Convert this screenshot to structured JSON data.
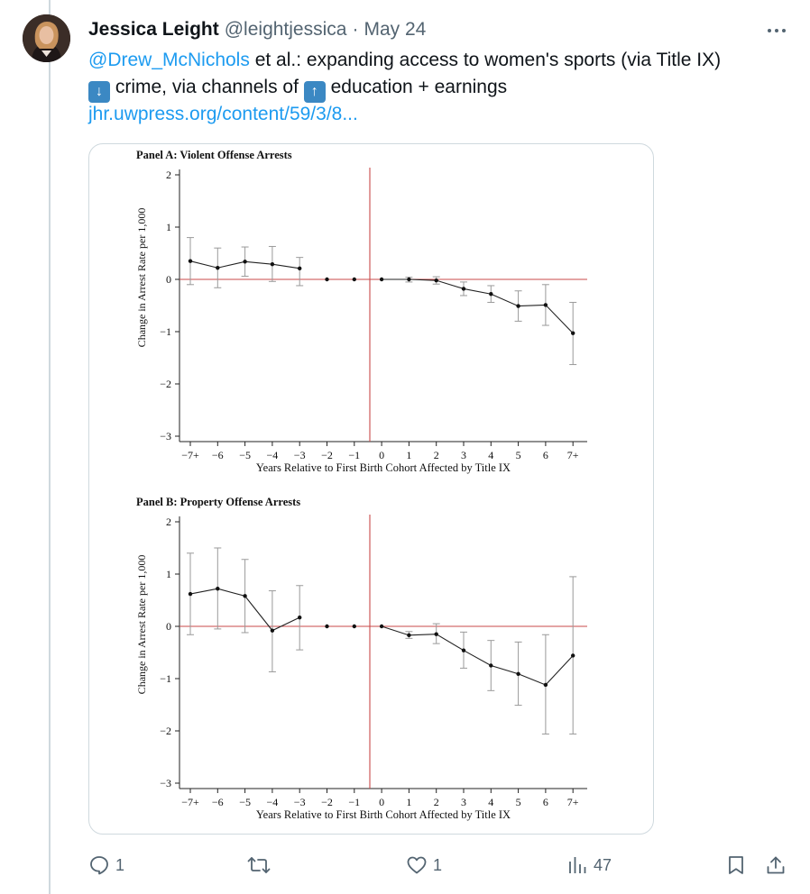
{
  "tweet": {
    "author_name": "Jessica Leight",
    "handle": "@leightjessica",
    "separator": "·",
    "date": "May 24",
    "mention": "@Drew_McNichols",
    "text_line1_rest": " et al.: expanding access to women's sports (via Title IX)",
    "emoji_down": "down-arrow-button",
    "text_line2_a": " crime, via channels of ",
    "emoji_up": "up-arrow-button",
    "text_line2_b": " education + earnings",
    "link": "jhr.uwpress.org/content/59/3/8..."
  },
  "actions": {
    "reply_count": "1",
    "retweet_count": "",
    "like_count": "1",
    "views_count": "47"
  },
  "chart_data": [
    {
      "type": "line",
      "title": "Panel A: Violent Offense Arrests",
      "xlabel": "Years Relative to First Birth Cohort Affected by Title IX",
      "ylabel": "Change in Arrest Rate per 1,000",
      "categories": [
        "−7+",
        "−6",
        "−5",
        "−4",
        "−3",
        "−2",
        "−1",
        "0",
        "1",
        "2",
        "3",
        "4",
        "5",
        "6",
        "7+"
      ],
      "yticks": [
        "2",
        "1",
        "0",
        "−1",
        "−2",
        "−3"
      ],
      "ylim": [
        -3,
        2
      ],
      "reference_line_y": 0,
      "reference_line_x_between": [
        "−1",
        "0"
      ],
      "values": [
        0.35,
        0.22,
        0.34,
        0.29,
        0.21,
        0.0,
        0.0,
        0.0,
        0.0,
        -0.02,
        -0.18,
        -0.28,
        -0.51,
        -0.49,
        -1.03
      ],
      "ci_low": [
        -0.1,
        -0.16,
        0.06,
        -0.04,
        -0.12,
        null,
        null,
        null,
        -0.05,
        -0.09,
        -0.31,
        -0.44,
        -0.8,
        -0.88,
        -1.63
      ],
      "ci_high": [
        0.8,
        0.6,
        0.62,
        0.63,
        0.42,
        null,
        null,
        null,
        0.04,
        0.05,
        -0.05,
        -0.12,
        -0.22,
        -0.1,
        -0.44
      ],
      "line_segments": [
        [
          0,
          4
        ],
        [
          7,
          14
        ]
      ]
    },
    {
      "type": "line",
      "title": "Panel B: Property Offense Arrests",
      "xlabel": "Years Relative to First Birth Cohort Affected by Title IX",
      "ylabel": "Change in Arrest Rate per 1,000",
      "categories": [
        "−7+",
        "−6",
        "−5",
        "−4",
        "−3",
        "−2",
        "−1",
        "0",
        "1",
        "2",
        "3",
        "4",
        "5",
        "6",
        "7+"
      ],
      "yticks": [
        "2",
        "1",
        "0",
        "−1",
        "−2",
        "−3"
      ],
      "ylim": [
        -3,
        2
      ],
      "reference_line_y": 0,
      "reference_line_x_between": [
        "−1",
        "0"
      ],
      "values": [
        0.62,
        0.72,
        0.58,
        -0.08,
        0.17,
        0.0,
        0.0,
        0.0,
        -0.17,
        -0.15,
        -0.46,
        -0.75,
        -0.91,
        -1.12,
        -0.56
      ],
      "ci_low": [
        -0.16,
        -0.05,
        -0.12,
        -0.87,
        -0.45,
        null,
        null,
        null,
        -0.23,
        -0.33,
        -0.8,
        -1.23,
        -1.51,
        -2.06,
        -2.06
      ],
      "ci_high": [
        1.4,
        1.5,
        1.28,
        0.68,
        0.78,
        null,
        null,
        null,
        -0.1,
        0.05,
        -0.11,
        -0.27,
        -0.3,
        -0.16,
        0.95
      ],
      "line_segments": [
        [
          0,
          4
        ],
        [
          7,
          14
        ]
      ]
    }
  ]
}
